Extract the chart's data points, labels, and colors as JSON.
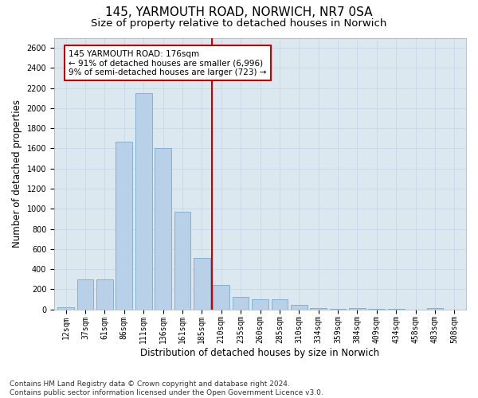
{
  "title_line1": "145, YARMOUTH ROAD, NORWICH, NR7 0SA",
  "title_line2": "Size of property relative to detached houses in Norwich",
  "xlabel": "Distribution of detached houses by size in Norwich",
  "ylabel": "Number of detached properties",
  "footnote": "Contains HM Land Registry data © Crown copyright and database right 2024.\nContains public sector information licensed under the Open Government Licence v3.0.",
  "categories": [
    "12sqm",
    "37sqm",
    "61sqm",
    "86sqm",
    "111sqm",
    "136sqm",
    "161sqm",
    "185sqm",
    "210sqm",
    "235sqm",
    "260sqm",
    "285sqm",
    "310sqm",
    "334sqm",
    "359sqm",
    "384sqm",
    "409sqm",
    "434sqm",
    "458sqm",
    "483sqm",
    "508sqm"
  ],
  "values": [
    20,
    300,
    300,
    1670,
    2150,
    1600,
    970,
    510,
    245,
    120,
    100,
    100,
    45,
    15,
    5,
    15,
    5,
    5,
    0,
    15,
    0
  ],
  "bar_color": "#b8d0e8",
  "bar_edge_color": "#7aaac8",
  "vline_x": 7.5,
  "vline_color": "#cc0000",
  "annotation_text": "145 YARMOUTH ROAD: 176sqm\n← 91% of detached houses are smaller (6,996)\n9% of semi-detached houses are larger (723) →",
  "annotation_box_color": "#ffffff",
  "annotation_box_edge": "#cc0000",
  "ylim": [
    0,
    2700
  ],
  "yticks": [
    0,
    200,
    400,
    600,
    800,
    1000,
    1200,
    1400,
    1600,
    1800,
    2000,
    2200,
    2400,
    2600
  ],
  "background_color": "#ffffff",
  "grid_color": "#c8d8e8",
  "title1_fontsize": 11,
  "title2_fontsize": 9.5,
  "axis_label_fontsize": 8.5,
  "tick_fontsize": 7,
  "annotation_fontsize": 7.5,
  "footnote_fontsize": 6.5
}
